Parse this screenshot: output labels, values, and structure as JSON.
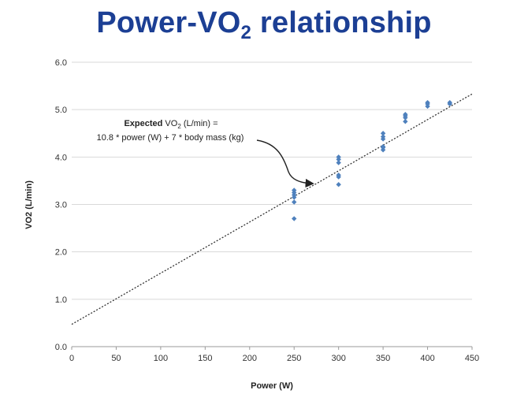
{
  "title": {
    "main": "Power-VO",
    "sub": "2",
    "rest": " relationship"
  },
  "annotation": {
    "bold": "Expected",
    "vo": " VO",
    "sub": "2",
    "rest": " (L/min) =",
    "line2": "10.8 * power (W) + 7 * body mass (kg)"
  },
  "colors": {
    "title": "#1c3f94",
    "points": "#4f81bd",
    "grid": "#d9d9d9",
    "trend": "#333333"
  },
  "chart_data": {
    "type": "scatter",
    "xlabel": "Power (W)",
    "ylabel": "VO2 (L/min)",
    "xlim": [
      0,
      450
    ],
    "ylim": [
      0,
      6
    ],
    "xticks": [
      0,
      50,
      100,
      150,
      200,
      250,
      300,
      350,
      400,
      450
    ],
    "yticks": [
      "0.0",
      "1.0",
      "2.0",
      "3.0",
      "4.0",
      "5.0",
      "6.0"
    ],
    "grid": "horizontal",
    "points": [
      [
        250,
        2.7
      ],
      [
        250,
        3.05
      ],
      [
        250,
        3.15
      ],
      [
        250,
        3.2
      ],
      [
        250,
        3.25
      ],
      [
        250,
        3.3
      ],
      [
        300,
        3.42
      ],
      [
        300,
        3.58
      ],
      [
        300,
        3.62
      ],
      [
        300,
        3.88
      ],
      [
        300,
        3.95
      ],
      [
        300,
        4.0
      ],
      [
        350,
        4.15
      ],
      [
        350,
        4.2
      ],
      [
        350,
        4.22
      ],
      [
        350,
        4.38
      ],
      [
        350,
        4.43
      ],
      [
        350,
        4.5
      ],
      [
        375,
        4.75
      ],
      [
        375,
        4.83
      ],
      [
        375,
        4.87
      ],
      [
        375,
        4.9
      ],
      [
        400,
        5.07
      ],
      [
        400,
        5.12
      ],
      [
        400,
        5.15
      ],
      [
        425,
        5.12
      ],
      [
        425,
        5.15
      ]
    ],
    "trendline": {
      "style": "dotted",
      "x": [
        0,
        450
      ],
      "y": [
        0.47,
        5.33
      ]
    }
  }
}
